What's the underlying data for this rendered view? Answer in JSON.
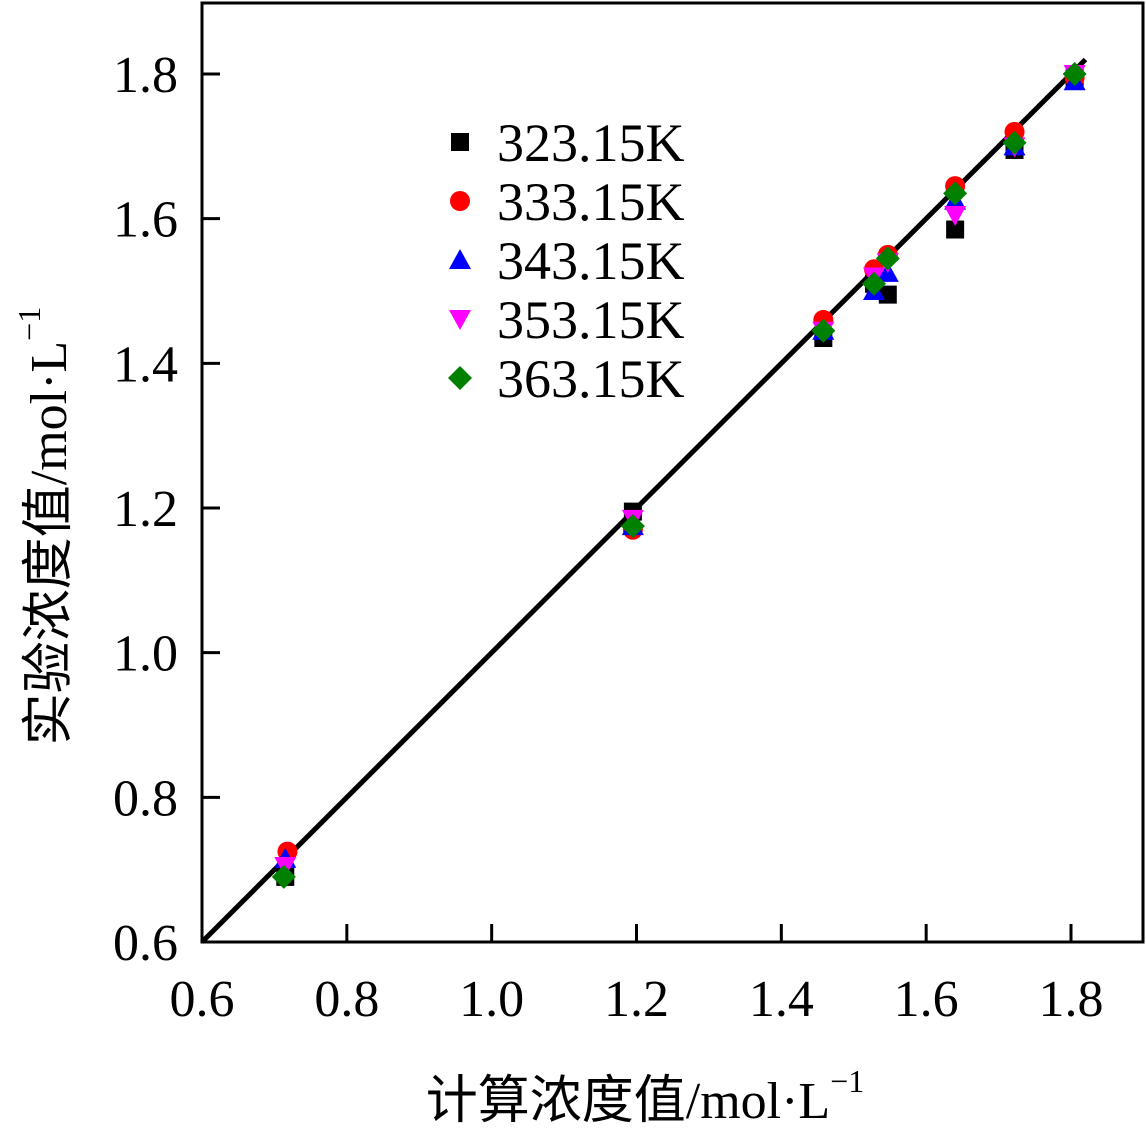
{
  "chart_data": {
    "type": "scatter",
    "title": "",
    "xlabel": "计算浓度值/mol·L",
    "ylabel": "实验浓度值/mol·L",
    "unit_exponent": "−1",
    "xlim": [
      0.6,
      1.85
    ],
    "ylim": [
      0.6,
      1.88
    ],
    "xticks": [
      "0.6",
      "0.8",
      "1.0",
      "1.2",
      "1.4",
      "1.6",
      "1.8"
    ],
    "yticks": [
      "0.6",
      "0.8",
      "1.0",
      "1.2",
      "1.4",
      "1.6",
      "1.8"
    ],
    "reference_line": {
      "x": [
        0.6,
        1.82
      ],
      "y": [
        0.6,
        1.82
      ]
    },
    "legend_position": "top-left",
    "series": [
      {
        "name": "323.15K",
        "marker": "square",
        "color": "#000000",
        "x": [
          0.715,
          1.195,
          1.458,
          1.528,
          1.547,
          1.64,
          1.722,
          1.805
        ],
        "y": [
          0.69,
          1.195,
          1.435,
          1.51,
          1.495,
          1.585,
          1.695,
          1.795
        ]
      },
      {
        "name": "333.15K",
        "marker": "circle",
        "color": "#ff0000",
        "x": [
          0.718,
          1.195,
          1.458,
          1.528,
          1.547,
          1.64,
          1.722,
          1.805
        ],
        "y": [
          0.725,
          1.17,
          1.46,
          1.53,
          1.55,
          1.645,
          1.72,
          1.795
        ]
      },
      {
        "name": "343.15K",
        "marker": "triangle-up",
        "color": "#0000ff",
        "x": [
          0.715,
          1.195,
          1.458,
          1.528,
          1.547,
          1.64,
          1.722,
          1.805
        ],
        "y": [
          0.715,
          1.175,
          1.445,
          1.5,
          1.525,
          1.625,
          1.7,
          1.79
        ]
      },
      {
        "name": "353.15K",
        "marker": "triangle-down",
        "color": "#ff00ff",
        "x": [
          0.715,
          1.195,
          1.458,
          1.528,
          1.547,
          1.64,
          1.722,
          1.805
        ],
        "y": [
          0.705,
          1.185,
          1.445,
          1.52,
          1.54,
          1.605,
          1.7,
          1.8
        ]
      },
      {
        "name": "363.15K",
        "marker": "diamond",
        "color": "#008000",
        "x": [
          0.713,
          1.195,
          1.458,
          1.528,
          1.547,
          1.64,
          1.722,
          1.805
        ],
        "y": [
          0.69,
          1.175,
          1.445,
          1.51,
          1.545,
          1.635,
          1.705,
          1.8
        ]
      }
    ]
  }
}
